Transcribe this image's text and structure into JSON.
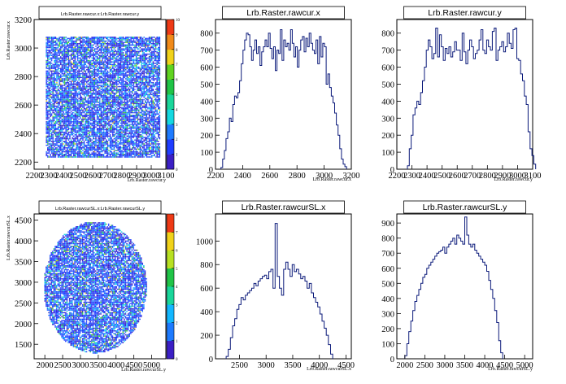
{
  "chart_data": [
    {
      "type": "heatmap",
      "title": "Lrb.Raster.rawcur.x:Lrb.Raster.rawcur.y",
      "xlabel": "Lrb.Raster.rawcur.y",
      "ylabel": "Lrb.Raster.rawcur.x",
      "xlim": [
        2200,
        3100
      ],
      "ylim": [
        2150,
        3200
      ],
      "xticks": [
        "2200",
        "2300",
        "2400",
        "2500",
        "2600",
        "2700",
        "2800",
        "2900",
        "3000",
        "3100"
      ],
      "yticks": [
        "2200",
        "2400",
        "2600",
        "2800",
        "3000",
        "3200"
      ],
      "shape": "square",
      "region": {
        "x": [
          2280,
          3060
        ],
        "y": [
          2240,
          3080
        ]
      },
      "z_range": [
        0,
        10
      ],
      "z_ticks": [
        "0",
        "1",
        "2",
        "3",
        "4",
        "5",
        "6",
        "7",
        "8",
        "9",
        "10"
      ]
    },
    {
      "type": "histogram",
      "title": "Lrb.Raster.rawcur.x",
      "xlabel": "Lrb.Raster.rawcur.x",
      "xlim": [
        2200,
        3200
      ],
      "ylim": [
        0,
        880
      ],
      "xticks": [
        "2200",
        "2400",
        "2600",
        "2800",
        "3000",
        "3200"
      ],
      "yticks": [
        "0",
        "100",
        "200",
        "300",
        "400",
        "500",
        "600",
        "700",
        "800"
      ],
      "bins": {
        "start": 2240,
        "width": 12.5,
        "values": [
          10,
          60,
          110,
          180,
          220,
          300,
          280,
          380,
          430,
          420,
          450,
          520,
          620,
          700,
          760,
          800,
          790,
          720,
          640,
          700,
          760,
          680,
          720,
          610,
          690,
          720,
          760,
          720,
          800,
          710,
          650,
          720,
          580,
          700,
          680,
          820,
          640,
          760,
          720,
          740,
          700,
          820,
          740,
          660,
          720,
          600,
          700,
          760,
          780,
          690,
          770,
          720,
          800,
          740,
          700,
          680,
          760,
          620,
          780,
          660,
          740,
          720,
          500,
          560,
          480,
          430,
          390,
          330,
          260,
          200,
          120,
          60,
          30,
          15
        ]
      }
    },
    {
      "type": "histogram",
      "title": "Lrb.Raster.rawcur.y",
      "xlabel": "Lrb.Raster.rawcur.y",
      "xlim": [
        2200,
        3100
      ],
      "ylim": [
        0,
        880
      ],
      "xticks": [
        "2200",
        "2300",
        "2400",
        "2500",
        "2600",
        "2700",
        "2800",
        "2900",
        "3000",
        "3100"
      ],
      "yticks": [
        "0",
        "100",
        "200",
        "300",
        "400",
        "500",
        "600",
        "700",
        "800"
      ],
      "bins": {
        "start": 2270,
        "width": 12.5,
        "values": [
          20,
          120,
          200,
          320,
          360,
          400,
          380,
          450,
          520,
          600,
          700,
          760,
          720,
          650,
          680,
          830,
          660,
          790,
          720,
          640,
          710,
          680,
          720,
          660,
          690,
          750,
          700,
          700,
          640,
          800,
          690,
          620,
          700,
          760,
          720,
          650,
          680,
          700,
          760,
          820,
          700,
          680,
          760,
          720,
          700,
          810,
          830,
          640,
          700,
          720,
          750,
          690,
          720,
          800,
          740,
          710,
          820,
          830,
          650,
          640,
          560,
          520,
          430,
          380,
          220,
          120,
          80,
          30
        ]
      }
    },
    {
      "type": "heatmap",
      "title": "Lrb.Raster.rawcurSL.x:Lrb.Raster.rawcurSL.y",
      "xlabel": "Lrb.Raster.rawcurSL.y",
      "ylabel": "Lrb.Raster.rawcurSL.x",
      "xlim": [
        1700,
        5400
      ],
      "ylim": [
        1150,
        4650
      ],
      "xticks": [
        "2000",
        "2500",
        "3000",
        "3500",
        "4000",
        "4500",
        "5000"
      ],
      "yticks": [
        "1500",
        "2000",
        "2500",
        "3000",
        "3500",
        "4000",
        "4500"
      ],
      "shape": "disc",
      "region": {
        "x": [
          1950,
          4850
        ],
        "y": [
          1300,
          4480
        ]
      },
      "z_range": [
        0,
        8
      ],
      "z_ticks": [
        "0",
        "1",
        "2",
        "3",
        "4",
        "5",
        "6",
        "7",
        "8"
      ]
    },
    {
      "type": "histogram",
      "title": "Lrb.Raster.rawcurSL.x",
      "xlabel": "Lrb.Raster.rawcurSL.x",
      "xlim": [
        2050,
        4600
      ],
      "ylim": [
        0,
        1230
      ],
      "xticks": [
        "2500",
        "3000",
        "3500",
        "4000",
        "4500"
      ],
      "yticks": [
        "0",
        "200",
        "400",
        "600",
        "800",
        "1000"
      ],
      "bins": {
        "start": 2250,
        "width": 40,
        "values": [
          20,
          80,
          180,
          280,
          340,
          420,
          460,
          520,
          500,
          540,
          560,
          580,
          600,
          640,
          620,
          660,
          680,
          700,
          710,
          680,
          740,
          760,
          600,
          1150,
          700,
          600,
          540,
          760,
          820,
          760,
          700,
          800,
          740,
          760,
          720,
          680,
          700,
          660,
          600,
          640,
          560,
          520,
          480,
          440,
          380,
          320,
          260,
          200,
          120,
          40
        ]
      }
    },
    {
      "type": "histogram",
      "title": "Lrb.Raster.rawcurSL.y",
      "xlabel": "Lrb.Raster.rawcurSL.y",
      "xlim": [
        1800,
        5200
      ],
      "ylim": [
        0,
        960
      ],
      "xticks": [
        "2000",
        "2500",
        "3000",
        "3500",
        "4000",
        "4500",
        "5000"
      ],
      "yticks": [
        "0",
        "100",
        "200",
        "300",
        "400",
        "500",
        "600",
        "700",
        "800",
        "900"
      ],
      "bins": {
        "start": 2000,
        "width": 50,
        "values": [
          20,
          100,
          180,
          250,
          320,
          380,
          420,
          460,
          500,
          540,
          560,
          600,
          620,
          640,
          660,
          680,
          700,
          710,
          720,
          740,
          700,
          740,
          760,
          780,
          800,
          760,
          820,
          800,
          780,
          760,
          940,
          820,
          760,
          740,
          760,
          720,
          700,
          680,
          660,
          640,
          620,
          580,
          520,
          460,
          400,
          320,
          240,
          120,
          40
        ]
      }
    }
  ]
}
